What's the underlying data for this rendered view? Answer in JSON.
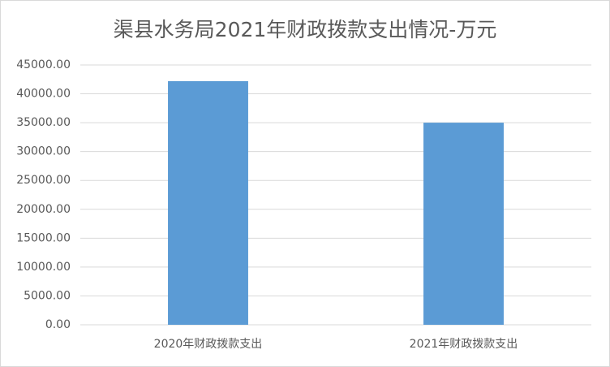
{
  "chart_data": {
    "type": "bar",
    "title": "渠县水务局2021年财政拨款支出情况-万元",
    "categories": [
      "2020年财政拨款支出",
      "2021年财政拨款支出"
    ],
    "values": [
      42200,
      35000
    ],
    "color": "#5b9bd5",
    "ylim": [
      0,
      45000
    ],
    "yticks": [
      {
        "value": 0,
        "label": "0.00"
      },
      {
        "value": 5000,
        "label": "5000.00"
      },
      {
        "value": 10000,
        "label": "10000.00"
      },
      {
        "value": 15000,
        "label": "15000.00"
      },
      {
        "value": 20000,
        "label": "20000.00"
      },
      {
        "value": 25000,
        "label": "25000.00"
      },
      {
        "value": 30000,
        "label": "30000.00"
      },
      {
        "value": 35000,
        "label": "35000.00"
      },
      {
        "value": 40000,
        "label": "40000.00"
      },
      {
        "value": 45000,
        "label": "45000.00"
      }
    ],
    "grid": true
  }
}
